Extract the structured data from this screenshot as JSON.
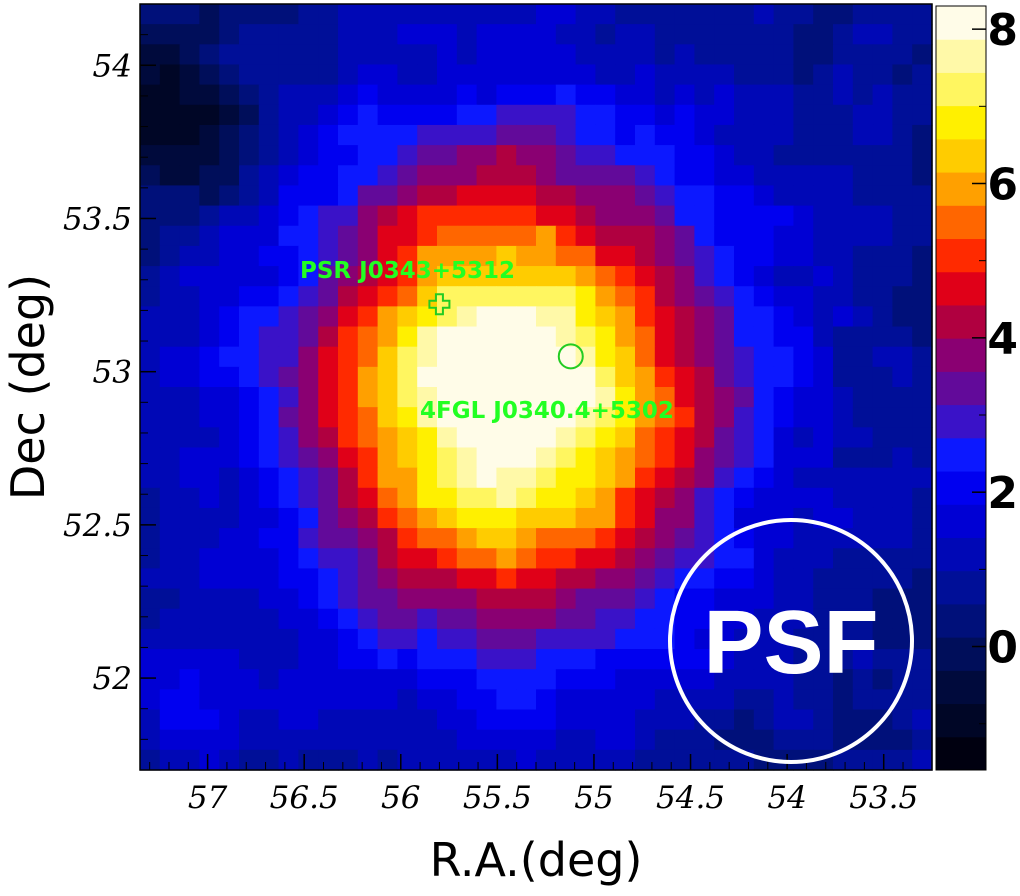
{
  "chart_data": {
    "type": "heatmap",
    "xlabel": "R.A.(deg)",
    "ylabel": "Dec (deg)",
    "xlim": [
      57.35,
      53.25
    ],
    "ylim": [
      51.7,
      54.2
    ],
    "x_ticks": [
      "57",
      "56.5",
      "56",
      "55.5",
      "55",
      "54.5",
      "54",
      "53.5"
    ],
    "x_tick_values": [
      57,
      56.5,
      56,
      55.5,
      55,
      54.5,
      54,
      53.5
    ],
    "y_ticks": [
      "54",
      "53.5",
      "53",
      "52.5",
      "52"
    ],
    "y_tick_values": [
      54,
      53.5,
      53,
      52.5,
      52
    ],
    "colorbar": {
      "min": -1.6,
      "max": 8.3,
      "tick_labels": [
        "0",
        "2",
        "4",
        "6",
        "8"
      ],
      "tick_values": [
        0,
        2,
        4,
        6,
        8
      ],
      "colors": [
        "#000010",
        "#000626",
        "#000a3c",
        "#000e5a",
        "#00107a",
        "#000f98",
        "#0008b6",
        "#0000d4",
        "#0000f0",
        "#0c18ff",
        "#3a12c8",
        "#620a9a",
        "#8a0072",
        "#b00040",
        "#e00018",
        "#ff2a00",
        "#ff6600",
        "#ffa000",
        "#ffcc00",
        "#fff000",
        "#fff660",
        "#fff9a8",
        "#fffce8"
      ]
    },
    "peak": {
      "ra": 55.45,
      "dec": 52.93,
      "value": 8.1
    },
    "grid": false,
    "annotations": [
      {
        "text": "PSR J0343+5312",
        "ra": 55.8,
        "dec": 53.22,
        "marker": "cross"
      },
      {
        "text": "4FGL J0340.4+5302",
        "ra": 55.12,
        "dec": 53.05,
        "marker": "circle"
      },
      {
        "text": "PSF",
        "position": "bottom-right",
        "marker": "large-circle"
      }
    ]
  }
}
